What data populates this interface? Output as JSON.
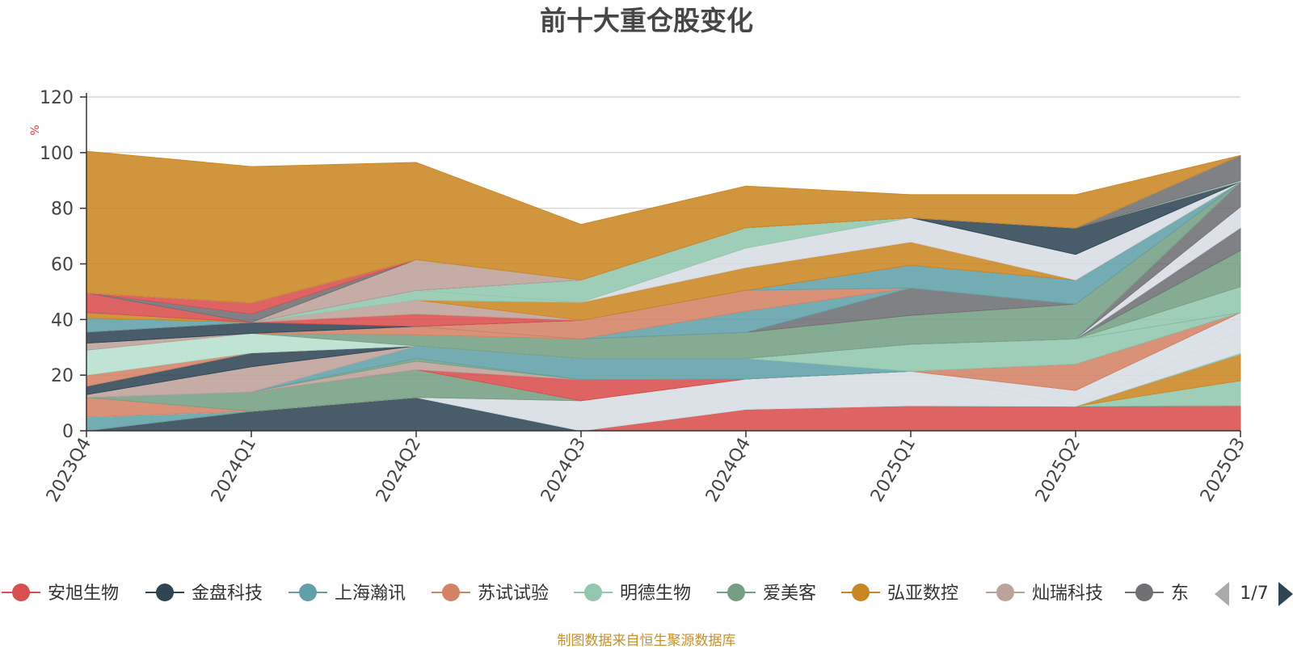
{
  "chart_data": {
    "type": "area",
    "title": "前十大重仓股变化",
    "ylabel": "%",
    "ylim": [
      0,
      120
    ],
    "y_ticks": [
      0,
      20,
      40,
      60,
      80,
      100,
      120
    ],
    "grid": true,
    "legend_position": "bottom",
    "legend_page": "1/7",
    "legend_labels": [
      "安旭生物",
      "金盘科技",
      "上海瀚讯",
      "苏试试验",
      "明德生物",
      "爱美客",
      "弘亚数控",
      "灿瑞科技",
      "东"
    ],
    "legend_colors": [
      "#d94e4e",
      "#2f4554",
      "#61a0a8",
      "#d48265",
      "#91c7ae",
      "#749f83",
      "#ca8622",
      "#bda29a",
      "#6e7074"
    ],
    "categories": [
      "2023Q4",
      "2024Q1",
      "2024Q2",
      "2024Q3",
      "2024Q4",
      "2025Q1",
      "2025Q2",
      "2025Q3"
    ],
    "series": [
      {
        "name": "安旭生物",
        "values": [
          0,
          0,
          0,
          0,
          7.7,
          9.0,
          8.8,
          9.0
        ],
        "color": "#d94e4e"
      },
      {
        "name": "金盘科技",
        "values": [
          0,
          7.0,
          12.0,
          0,
          0,
          0,
          0,
          0
        ],
        "color": "#2f4554"
      },
      {
        "name": "",
        "values": [
          0,
          0,
          0,
          0,
          0,
          0,
          0,
          9.0
        ],
        "color": "#91c7ae"
      },
      {
        "name": "",
        "values": [
          0,
          0,
          0,
          0,
          0,
          0,
          0,
          9.5
        ],
        "color": "#ca8622"
      },
      {
        "name": "上海瀚讯",
        "values": [
          5.0,
          0,
          0,
          0,
          0,
          0,
          0,
          0
        ],
        "color": "#61a0a8"
      },
      {
        "name": "明德生物",
        "values": [
          0,
          0,
          0,
          0,
          0,
          0,
          0,
          0.5
        ],
        "color": "#91c7ae"
      },
      {
        "name": "",
        "values": [
          0,
          0,
          0,
          10.8,
          10.9,
          12.4,
          0.1,
          8.0
        ],
        "color": "#d7dce4"
      },
      {
        "name": "",
        "values": [
          0,
          0,
          0,
          0,
          0,
          0,
          5.6,
          6.5
        ],
        "color": "#d7dce4"
      },
      {
        "name": "苏试试验",
        "values": [
          7.0,
          0,
          0,
          0,
          0,
          0,
          0,
          0
        ],
        "color": "#d48265"
      },
      {
        "name": "爱美客",
        "values": [
          0,
          7.0,
          10.0,
          0,
          0,
          0,
          0,
          0
        ],
        "color": "#749f83"
      },
      {
        "name": "",
        "values": [
          0,
          0,
          0,
          0,
          0,
          0,
          9.5,
          0
        ],
        "color": "#d48265"
      },
      {
        "name": "",
        "values": [
          0,
          0,
          0,
          7.6,
          0,
          0,
          0,
          0
        ],
        "color": "#d94e4e"
      },
      {
        "name": "",
        "values": [
          0,
          0,
          3.0,
          0,
          0,
          0,
          0,
          0
        ],
        "color": "#bda29a"
      },
      {
        "name": "",
        "values": [
          0,
          0,
          1.0,
          0,
          0,
          0,
          0,
          0
        ],
        "color": "#749f83"
      },
      {
        "name": "",
        "values": [
          0,
          0,
          4.5,
          7.6,
          7.4,
          0,
          0,
          0
        ],
        "color": "#61a0a8"
      },
      {
        "name": "",
        "values": [
          0,
          0,
          0,
          0,
          0,
          9.7,
          9.0,
          0
        ],
        "color": "#91c7ae"
      },
      {
        "name": "",
        "values": [
          1.0,
          9.0,
          0,
          0,
          0,
          0,
          0,
          0
        ],
        "color": "#bda29a"
      },
      {
        "name": "",
        "values": [
          3.0,
          5.0,
          0,
          0,
          0,
          0,
          0,
          0
        ],
        "color": "#2f4554"
      },
      {
        "name": "",
        "values": [
          0,
          0,
          0,
          0,
          0,
          0,
          0,
          9.3
        ],
        "color": "#91c7ae"
      },
      {
        "name": "",
        "values": [
          4.0,
          0,
          0,
          0,
          0,
          0,
          0,
          0
        ],
        "color": "#d48265"
      },
      {
        "name": "",
        "values": [
          0,
          0,
          0,
          0,
          0,
          0,
          0,
          13.0
        ],
        "color": "#749f83"
      },
      {
        "name": "",
        "values": [
          0,
          0,
          0,
          0,
          0,
          0,
          0,
          8.2
        ],
        "color": "#6e7074"
      },
      {
        "name": "",
        "values": [
          0,
          0,
          0,
          0,
          0,
          0,
          0,
          7.5
        ],
        "color": "#d7dce4"
      },
      {
        "name": "",
        "values": [
          0,
          0,
          0,
          0,
          0,
          0,
          0,
          9.0
        ],
        "color": "#6e7074"
      },
      {
        "name": "",
        "values": [
          9.0,
          7.0,
          0,
          0,
          0,
          0,
          0,
          0
        ],
        "color": "#b7e0cd"
      },
      {
        "name": "",
        "values": [
          0,
          0,
          4.0,
          7.0,
          9.4,
          10.4,
          12.5,
          0
        ],
        "color": "#749f83"
      },
      {
        "name": "",
        "values": [
          2.5,
          0,
          0,
          0,
          0,
          0,
          0,
          0
        ],
        "color": "#bda29a"
      },
      {
        "name": "",
        "values": [
          0,
          0,
          3.0,
          0,
          0,
          0,
          0,
          0
        ],
        "color": "#d48265"
      },
      {
        "name": "",
        "values": [
          0,
          0,
          0,
          0,
          0,
          9.8,
          0,
          0
        ],
        "color": "#6e7074"
      },
      {
        "name": "",
        "values": [
          0,
          0,
          0,
          0,
          7.6,
          0,
          0,
          0
        ],
        "color": "#61a0a8"
      },
      {
        "name": "",
        "values": [
          0,
          0,
          0,
          6.7,
          7.5,
          0,
          0,
          0
        ],
        "color": "#d48265"
      },
      {
        "name": "",
        "values": [
          0,
          0,
          0,
          0,
          0,
          8.2,
          8.7,
          0
        ],
        "color": "#61a0a8"
      },
      {
        "name": "",
        "values": [
          4.0,
          4.0,
          0,
          0,
          0,
          0,
          0,
          0
        ],
        "color": "#2f4554"
      },
      {
        "name": "",
        "values": [
          0,
          0,
          4.5,
          0,
          0,
          0,
          0,
          0
        ],
        "color": "#d94e4e"
      },
      {
        "name": "",
        "values": [
          0,
          0,
          5.0,
          0,
          0,
          0,
          0,
          0
        ],
        "color": "#bda29a"
      },
      {
        "name": "",
        "values": [
          0,
          0,
          0,
          6.5,
          8.2,
          8.4,
          0,
          0
        ],
        "color": "#ca8622"
      },
      {
        "name": "",
        "values": [
          5.0,
          0,
          0,
          0,
          0,
          0,
          0,
          0
        ],
        "color": "#61a0a8"
      },
      {
        "name": "",
        "values": [
          2.0,
          0,
          0,
          0,
          0,
          0,
          0,
          0
        ],
        "color": "#ca8622"
      },
      {
        "name": "",
        "values": [
          0,
          0,
          0,
          0,
          7.0,
          8.7,
          9.2,
          0
        ],
        "color": "#d7dce4"
      },
      {
        "name": "",
        "values": [
          0,
          0,
          3.5,
          0,
          0,
          0,
          0,
          0
        ],
        "color": "#91c7ae"
      },
      {
        "name": "",
        "values": [
          0,
          0,
          0,
          8.0,
          7.3,
          0,
          0,
          0
        ],
        "color": "#91c7ae"
      },
      {
        "name": "",
        "values": [
          0,
          0,
          0,
          0,
          0,
          0,
          9.5,
          0
        ],
        "color": "#2f4554"
      },
      {
        "name": "",
        "values": [
          0,
          0,
          11.0,
          0,
          0,
          0,
          0,
          0
        ],
        "color": "#bda29a"
      },
      {
        "name": "",
        "values": [
          7.0,
          0,
          0,
          0,
          0,
          0,
          0,
          0
        ],
        "color": "#d94e4e"
      },
      {
        "name": "",
        "values": [
          0,
          3.0,
          0,
          0,
          0,
          0,
          0,
          0
        ],
        "color": "#6e7074"
      },
      {
        "name": "",
        "values": [
          0,
          4.0,
          0,
          0,
          0,
          0,
          0,
          0
        ],
        "color": "#d94e4e"
      },
      {
        "name": "",
        "values": [
          0,
          0,
          0,
          0,
          0,
          0,
          0,
          0.5
        ],
        "color": "#91c7ae"
      },
      {
        "name": "",
        "values": [
          0,
          0,
          0,
          0,
          0,
          0,
          0,
          9.0
        ],
        "color": "#6e7074"
      },
      {
        "name": "",
        "values": [
          0,
          0,
          0,
          0,
          0,
          0,
          0,
          0
        ],
        "color": "#d48265"
      },
      {
        "name": "",
        "values": [
          0,
          0,
          0,
          0,
          0,
          0,
          0,
          0
        ],
        "color": "#b7e0cd"
      },
      {
        "name": "",
        "values": [
          51.0,
          49.0,
          35.0,
          20.0,
          15.0,
          8.3,
          12.0,
          0.0
        ],
        "color": "#ca8622"
      }
    ]
  },
  "footer": {
    "source_note": "制图数据来自恒生聚源数据库"
  }
}
